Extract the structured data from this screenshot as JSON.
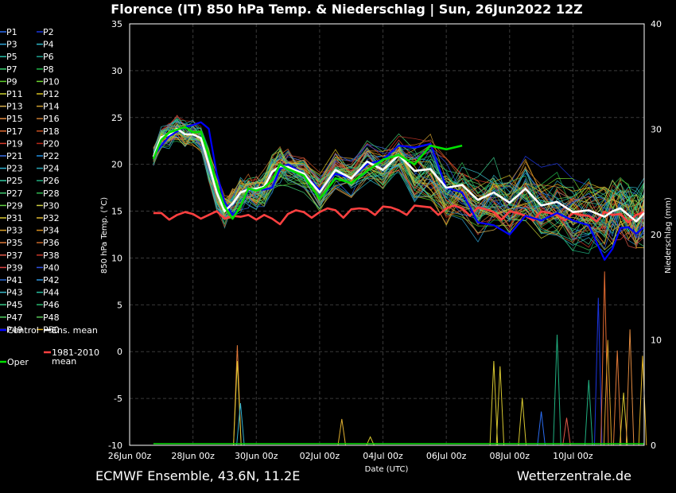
{
  "page": {
    "title": "Florence  (IT)  850 hPa Temp. & Niederschlag | Sun, 26Jun2022 12Z",
    "footer_left": "ECMWF Ensemble, 43.6N, 11.2E",
    "footer_right": "Wetterzentrale.de"
  },
  "chart_data": {
    "type": "line",
    "title": "Florence  (IT)  850 hPa Temp. & Niederschlag | Sun, 26Jun2022 12Z",
    "xlabel": "Date (UTC)",
    "ylabel": "850 hPa Temp. (°C)",
    "y2label": "Niederschlag (mm)",
    "x_tick_labels": [
      "26Jun 00z",
      "28Jun 00z",
      "30Jun 00z",
      "02Jul 00z",
      "04Jul 00z",
      "06Jul 00z",
      "08Jul 00z",
      "10Jul 00z"
    ],
    "x_range_days_from_26Jun00z": [
      0,
      16.25
    ],
    "ylim": [
      -10,
      35
    ],
    "yticks": [
      -10,
      -5,
      0,
      5,
      10,
      15,
      20,
      25,
      30,
      35
    ],
    "y2lim": [
      0,
      40
    ],
    "y2ticks": [
      0,
      10,
      20,
      30,
      40
    ],
    "grid": true,
    "legend_placement": "left-outside",
    "member_labels": [
      "P1",
      "P2",
      "P3",
      "P4",
      "P5",
      "P6",
      "P7",
      "P8",
      "P9",
      "P10",
      "P11",
      "P12",
      "P13",
      "P14",
      "P15",
      "P16",
      "P17",
      "P18",
      "P19",
      "P20",
      "P21",
      "P22",
      "P23",
      "P24",
      "P25",
      "P26",
      "P27",
      "P28",
      "P29",
      "P30",
      "P31",
      "P32",
      "P33",
      "P34",
      "P35",
      "P36",
      "P37",
      "P38",
      "P39",
      "P40",
      "P41",
      "P42",
      "P43",
      "P44",
      "P45",
      "P46",
      "P47",
      "P48",
      "P49",
      "P50"
    ],
    "member_colors": [
      "#2a6cf0",
      "#1b35e0",
      "#30a6d8",
      "#2fb8c8",
      "#28c0a8",
      "#1ea090",
      "#3ad070",
      "#20b84a",
      "#5ccc2a",
      "#70d830",
      "#c8d030",
      "#d8c020",
      "#d8b050",
      "#d0a030",
      "#e08a40",
      "#c87a30",
      "#e06a30",
      "#c85020",
      "#d83a2a",
      "#b82818",
      "#3a70e8",
      "#2090e0",
      "#30b0d0",
      "#28a8b8",
      "#30c8a0",
      "#20b080",
      "#40c870",
      "#30b850",
      "#60d040",
      "#d0d040",
      "#d8c830",
      "#e0b830",
      "#d8a028",
      "#d89020",
      "#e07838",
      "#c86828",
      "#e05848",
      "#c83828",
      "#d84040",
      "#3050e0",
      "#2868d0",
      "#3098e0",
      "#38b8c8",
      "#28c0a0",
      "#38c888",
      "#28b870",
      "#50d060",
      "#58c858",
      "#d8c838",
      "#e0b020"
    ],
    "series": [
      {
        "name": "Control",
        "color": "#0000ff",
        "x": [
          0.75,
          1,
          1.25,
          1.5,
          1.75,
          2,
          2.25,
          2.5,
          2.75,
          3,
          3.25,
          3.5,
          3.75,
          4,
          4.25,
          4.5,
          4.75,
          5,
          5.5,
          6,
          6.5,
          7,
          7.5,
          8,
          8.5,
          9,
          9.5,
          10,
          10.5,
          11,
          11.5,
          12,
          12.5,
          13,
          13.5,
          14,
          14.5,
          15,
          15.25,
          15.5,
          15.75,
          16,
          16.25
        ],
        "values": [
          20.8,
          22,
          23,
          23.5,
          24,
          24.2,
          24.5,
          23.8,
          19,
          16,
          14.6,
          15.4,
          17.2,
          17.4,
          17.3,
          17.5,
          19.5,
          20,
          19,
          17.3,
          19,
          18.5,
          20,
          20.5,
          22,
          21.8,
          22.2,
          17.5,
          17,
          13.8,
          13.5,
          12.5,
          14.5,
          14,
          14.8,
          14,
          13.5,
          9.8,
          11,
          13.2,
          13.3,
          12.6,
          13.3
        ]
      },
      {
        "name": "Ens. mean",
        "color": "#ffffff",
        "x": [
          0.75,
          1,
          1.25,
          1.5,
          1.75,
          2,
          2.25,
          2.5,
          2.75,
          3,
          3.25,
          3.5,
          3.75,
          4,
          4.25,
          4.5,
          4.75,
          5,
          5.5,
          6,
          6.5,
          7,
          7.5,
          8,
          8.5,
          9,
          9.5,
          10,
          10.5,
          11,
          11.5,
          12,
          12.5,
          13,
          13.5,
          14,
          14.5,
          15,
          15.25,
          15.5,
          15.75,
          16,
          16.25
        ],
        "values": [
          20.8,
          22.9,
          23.2,
          23.8,
          23.2,
          23.2,
          22.8,
          20,
          17,
          15,
          15.8,
          17,
          17.3,
          17.4,
          17.6,
          19.2,
          19.8,
          19.7,
          19,
          17,
          19.4,
          18.5,
          20.3,
          19.4,
          21,
          19.3,
          19.5,
          17.5,
          17.8,
          16.2,
          17,
          15.9,
          17.4,
          15.6,
          16,
          14.9,
          15.1,
          14.4,
          15,
          15.3,
          14.6,
          13.9,
          14.8
        ]
      },
      {
        "name": "1981-2010 mean",
        "color": "#ff4040",
        "x": [
          0.75,
          1,
          1.25,
          1.5,
          1.75,
          2,
          2.25,
          2.5,
          2.75,
          3,
          3.25,
          3.5,
          3.75,
          4,
          4.25,
          4.5,
          4.75,
          5,
          5.25,
          5.5,
          5.75,
          6,
          6.25,
          6.5,
          6.75,
          7,
          7.25,
          7.5,
          7.75,
          8,
          8.25,
          8.5,
          8.75,
          9,
          9.25,
          9.5,
          9.75,
          10,
          10.25,
          10.5,
          10.75,
          11,
          11.25,
          11.5,
          11.75,
          12,
          12.25,
          12.5,
          12.75,
          13,
          13.25,
          13.5,
          13.75,
          14,
          14.25,
          14.5,
          14.75,
          15,
          15.25,
          15.5,
          15.75,
          16,
          16.25
        ],
        "values": [
          14.8,
          14.8,
          14.1,
          14.6,
          14.9,
          14.7,
          14.2,
          14.6,
          15,
          14.2,
          14.5,
          14.4,
          14.6,
          14.1,
          14.6,
          14.2,
          13.6,
          14.7,
          15.1,
          14.9,
          14.3,
          14.9,
          15.3,
          15.1,
          14.3,
          15.2,
          15.3,
          15.2,
          14.6,
          15.5,
          15.4,
          15.1,
          14.6,
          15.6,
          15.5,
          15.4,
          14.6,
          15.3,
          15.6,
          15.3,
          14.5,
          15.4,
          15.2,
          14.9,
          14.1,
          15,
          14.8,
          14.5,
          14,
          15,
          14.8,
          14.6,
          14,
          14.8,
          14.6,
          14.5,
          13.9,
          14.9,
          14.6,
          14.7,
          13.8,
          14.6,
          14.9
        ]
      },
      {
        "name": "Oper",
        "color": "#00e000",
        "x": [
          0.75,
          1,
          1.25,
          1.5,
          1.75,
          2,
          2.25,
          2.5,
          2.75,
          3,
          3.25,
          3.5,
          3.75,
          4,
          4.25,
          4.5,
          4.75,
          5,
          5.5,
          6,
          6.5,
          7,
          7.5,
          8,
          8.5,
          9,
          9.5,
          10,
          10.5
        ],
        "values": [
          20.6,
          22.6,
          23.4,
          23.7,
          24,
          23.4,
          23.5,
          21,
          17.8,
          15.5,
          14.2,
          15.5,
          17.4,
          17.2,
          17.5,
          18.3,
          20,
          19.5,
          18.8,
          16.3,
          18.5,
          18,
          19.3,
          20.5,
          21,
          20,
          22,
          21.6,
          22
        ]
      }
    ],
    "precip_spikes_mm": [
      {
        "x": 3.4,
        "value": 9.5,
        "color": "#e07838"
      },
      {
        "x": 3.4,
        "value": 8,
        "color": "#d8c830"
      },
      {
        "x": 3.5,
        "value": 4,
        "color": "#30b0d0"
      },
      {
        "x": 6.7,
        "value": 2.5,
        "color": "#e0b030"
      },
      {
        "x": 7.6,
        "value": 0.8,
        "color": "#d8c830"
      },
      {
        "x": 11.5,
        "value": 8,
        "color": "#d8c830"
      },
      {
        "x": 11.7,
        "value": 7.5,
        "color": "#d8c830"
      },
      {
        "x": 12.4,
        "value": 4.5,
        "color": "#d8c830"
      },
      {
        "x": 13,
        "value": 3.2,
        "color": "#2a6cf0"
      },
      {
        "x": 13.5,
        "value": 10.5,
        "color": "#20b080"
      },
      {
        "x": 13.8,
        "value": 2.6,
        "color": "#e05848"
      },
      {
        "x": 14.5,
        "value": 6.2,
        "color": "#20b080"
      },
      {
        "x": 14.8,
        "value": 14,
        "color": "#1b35e0"
      },
      {
        "x": 15,
        "value": 16.5,
        "color": "#e06a30"
      },
      {
        "x": 15.1,
        "value": 10,
        "color": "#d8a028"
      },
      {
        "x": 15.4,
        "value": 9,
        "color": "#e07838"
      },
      {
        "x": 15.6,
        "value": 5,
        "color": "#d8c830"
      },
      {
        "x": 15.8,
        "value": 11,
        "color": "#e08a40"
      },
      {
        "x": 16.2,
        "value": 8.5,
        "color": "#e0b020"
      }
    ]
  }
}
